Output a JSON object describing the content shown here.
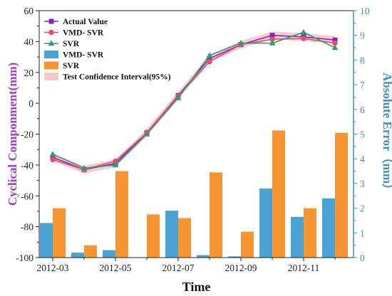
{
  "chart_data": {
    "type": "combo",
    "xlabel": "Time",
    "ylabel_left": "Cyclical Componment(mm)",
    "ylabel_right": "Absolute Error（mm）",
    "ylim_left": [
      -100,
      60
    ],
    "yticks_left": [
      -100,
      -80,
      -60,
      -40,
      -20,
      0,
      20,
      40,
      60
    ],
    "ylim_right": [
      0,
      10
    ],
    "yticks_right": [
      0,
      1,
      2,
      3,
      4,
      5,
      6,
      7,
      8,
      9,
      10
    ],
    "x_ticks": [
      "2012-03",
      "2012-05",
      "2012-07",
      "2012-09",
      "2012-11"
    ],
    "x_tick_index": [
      0,
      2,
      4,
      6,
      8
    ],
    "categories": [
      "2012-03",
      "2012-04",
      "2012-05",
      "2012-06",
      "2012-07",
      "2012-08",
      "2012-09",
      "2012-10",
      "2012-11",
      "2012-12"
    ],
    "line_series": [
      {
        "name": "Actual Value",
        "color": "#7b2ab5",
        "marker": "square",
        "values": [
          -35,
          -43,
          -39,
          -19,
          5,
          29,
          38,
          44,
          43,
          41
        ]
      },
      {
        "name": "VMD- SVR",
        "color": "#ea4c64",
        "marker": "circle",
        "values": [
          -36.5,
          -43,
          -37.5,
          -19,
          4.5,
          27,
          38,
          41.5,
          42,
          39
        ]
      },
      {
        "name": "SVR",
        "color": "#2a9d78",
        "marker": "triangle",
        "values": [
          -33,
          -42,
          -40,
          -20,
          3.5,
          31,
          39,
          39,
          46,
          36
        ]
      }
    ],
    "bar_series": [
      {
        "name": "VMD- SVR",
        "color": "#4aa3d2",
        "values": [
          1.4,
          0.2,
          0.3,
          0.0,
          1.9,
          0.1,
          0.05,
          2.8,
          1.65,
          2.4
        ]
      },
      {
        "name": "SVR",
        "color": "#f79532",
        "values": [
          2.0,
          0.5,
          3.5,
          1.75,
          1.6,
          3.45,
          1.05,
          5.15,
          2.0,
          5.05
        ]
      }
    ],
    "confidence_band": {
      "name": "Test Confidence Interval(95%)",
      "color": "#f7c6cc",
      "half_width": 2.5
    },
    "legend_position": "top-left",
    "colors": {
      "left_axis": "#a23ac4",
      "right_axis": "#3d8fbd",
      "axis_text": "#222222"
    }
  }
}
